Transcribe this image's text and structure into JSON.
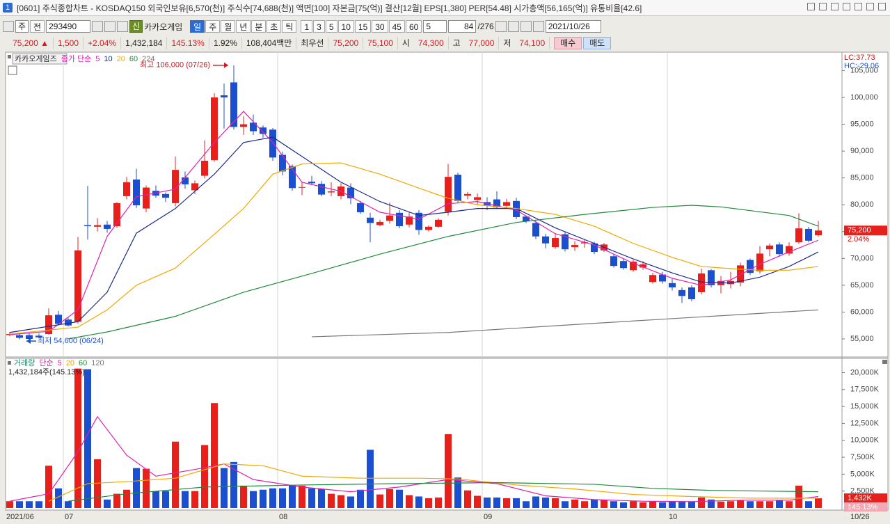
{
  "window": {
    "number": "1",
    "title": "[0601] 주식종합차트 - KOSDAQ150 외국인보유[6,570(천)] 주식수[74,688(천)] 액면[100] 자본금[75(억)] 결산[12월] EPS[1,380] PER[54.48] 시가총액[56,165(억)] 유통비율[42.6]"
  },
  "toolbar": {
    "period_type": "주",
    "scope": "전",
    "code": "293490",
    "new_badge": "신",
    "name": "카카오게임",
    "periods": [
      "일",
      "주",
      "월",
      "년",
      "분",
      "초",
      "틱"
    ],
    "minutes": [
      "1",
      "3",
      "5",
      "10",
      "15",
      "30",
      "45",
      "60"
    ],
    "interval": "5",
    "count": "84",
    "total": "/276",
    "date": "2021/10/26"
  },
  "quote": {
    "price": "75,200",
    "sign": "▲",
    "change": "1,500",
    "change_rate": "+2.04%",
    "volume": "1,432,184",
    "volume_ratio": "145.13%",
    "turnover": "1.92%",
    "amount": "108,404백만",
    "best_label": "최우선",
    "ask": "75,200",
    "bid": "75,100",
    "open_label": "시",
    "open": "74,300",
    "high_label": "고",
    "high": "77,000",
    "low_label": "저",
    "low": "74,100",
    "buy": "매수",
    "sell": "매도"
  },
  "chart_data": [
    {
      "type": "candlestick",
      "title": "카카오게임즈",
      "legend_prefix": "종가 단순",
      "up_color": "#e8201c",
      "down_color": "#1c4fd0",
      "open": [
        55700,
        55700,
        55700,
        55600,
        55900,
        59500,
        58600,
        58200,
        76200,
        75900,
        76300,
        76000,
        81600,
        84700,
        79300,
        82600,
        82000,
        80300,
        85100,
        82700,
        85400,
        88300,
        100400,
        102800,
        94500,
        95300,
        94400,
        94000,
        89300,
        87200,
        83200,
        84300,
        83900,
        82300,
        81600,
        83200,
        80300,
        77600,
        76200,
        77000,
        78500,
        76300,
        78500,
        75300,
        75900,
        78700,
        85600,
        81700,
        80900,
        80500,
        81000,
        79800,
        80700,
        77800,
        76600,
        74100,
        72100,
        74500,
        72100,
        72800,
        72800,
        71500,
        70400,
        69500,
        67800,
        68300,
        65600,
        67000,
        65400,
        64100,
        64600,
        63700,
        67800,
        65000,
        65200,
        65500,
        69700,
        67600,
        71700,
        72600,
        70900,
        73000,
        75500,
        74300
      ],
      "high": [
        56300,
        56000,
        56100,
        56000,
        60700,
        60200,
        59000,
        74000,
        83500,
        77500,
        77000,
        80500,
        85200,
        86700,
        83600,
        83600,
        82300,
        89000,
        86200,
        84500,
        92000,
        100800,
        102600,
        106000,
        96500,
        96800,
        94800,
        94300,
        89900,
        87500,
        84200,
        85400,
        84400,
        84200,
        84000,
        84000,
        80700,
        78500,
        77200,
        80400,
        79000,
        78600,
        79000,
        76200,
        77500,
        87600,
        86000,
        82400,
        82100,
        81400,
        82500,
        81100,
        81300,
        78000,
        77000,
        74600,
        74700,
        74900,
        73200,
        73500,
        73100,
        72900,
        70800,
        69900,
        69700,
        69500,
        67300,
        67500,
        66200,
        64600,
        65000,
        68100,
        68000,
        66700,
        67500,
        69200,
        70000,
        72300,
        72800,
        73000,
        73000,
        78400,
        75900,
        77000
      ],
      "low": [
        55500,
        54900,
        54600,
        55100,
        55800,
        57500,
        57300,
        57800,
        73500,
        75000,
        74800,
        75700,
        81000,
        79400,
        78600,
        81300,
        80500,
        79700,
        83000,
        82000,
        84900,
        88000,
        94200,
        94000,
        93000,
        93000,
        92500,
        88200,
        85500,
        82600,
        81800,
        83600,
        81600,
        81600,
        81000,
        80100,
        78300,
        73000,
        76000,
        76500,
        75600,
        75800,
        74400,
        75000,
        75700,
        78000,
        80300,
        81000,
        80000,
        79000,
        79200,
        79500,
        77300,
        76600,
        73600,
        71900,
        71800,
        71300,
        71400,
        72000,
        70800,
        71200,
        68300,
        67900,
        67500,
        67900,
        65300,
        65300,
        64000,
        61700,
        62000,
        63300,
        64600,
        63500,
        64400,
        64800,
        66900,
        67200,
        70400,
        70300,
        70500,
        72700,
        73000,
        74100
      ],
      "close": [
        55900,
        55200,
        55000,
        55300,
        59400,
        57800,
        57500,
        71500,
        76000,
        76200,
        75500,
        80300,
        84200,
        79900,
        83200,
        81700,
        81300,
        86500,
        83800,
        84000,
        88200,
        100000,
        100000,
        94500,
        95000,
        93700,
        93200,
        88800,
        86200,
        83100,
        83300,
        84000,
        81900,
        82500,
        83400,
        81200,
        78600,
        76600,
        76800,
        78000,
        76000,
        77800,
        75300,
        75900,
        77200,
        85200,
        80700,
        82000,
        81400,
        79800,
        79500,
        80500,
        77700,
        76900,
        74100,
        72800,
        73800,
        71700,
        72500,
        73000,
        71200,
        72600,
        68600,
        68200,
        69400,
        68900,
        66900,
        65700,
        64600,
        63000,
        62400,
        67200,
        65000,
        65800,
        65800,
        68700,
        67300,
        70900,
        72400,
        70800,
        72300,
        75600,
        73300,
        75200
      ],
      "series": [
        {
          "name": "5",
          "color": "#e020b0",
          "x": [
            0,
            4,
            7,
            10,
            13,
            17,
            21,
            24,
            27,
            30,
            34,
            38,
            42,
            45,
            48,
            52,
            56,
            60,
            64,
            68,
            71,
            74,
            77,
            80,
            83
          ],
          "values": [
            55800,
            56400,
            60400,
            74100,
            81500,
            82900,
            91600,
            97400,
            91600,
            84200,
            82500,
            78600,
            77300,
            80200,
            80600,
            79000,
            74600,
            72500,
            69100,
            66300,
            65000,
            66000,
            68900,
            71200,
            73400
          ]
        },
        {
          "name": "10",
          "color": "#1c2a8a",
          "x": [
            0,
            7,
            10,
            13,
            17,
            21,
            24,
            27,
            30,
            34,
            38,
            42,
            45,
            48,
            52,
            56,
            60,
            64,
            68,
            71,
            74,
            77,
            80,
            83
          ],
          "values": [
            56200,
            58200,
            63700,
            74700,
            79300,
            85700,
            91600,
            92600,
            89000,
            84200,
            80600,
            78000,
            78600,
            79300,
            79300,
            75700,
            72800,
            69900,
            67300,
            65600,
            65400,
            66500,
            68500,
            71200
          ]
        },
        {
          "name": "20",
          "color": "#f0a800",
          "x": [
            0,
            7,
            10,
            13,
            17,
            21,
            24,
            27,
            30,
            34,
            38,
            42,
            45,
            48,
            52,
            56,
            60,
            64,
            68,
            71,
            74,
            77,
            80,
            83
          ],
          "values": [
            55900,
            57200,
            60400,
            65000,
            68200,
            74500,
            79300,
            85700,
            87600,
            87800,
            85700,
            83100,
            81200,
            80000,
            79300,
            78200,
            76000,
            72800,
            70200,
            68500,
            68100,
            67800,
            67800,
            68500
          ]
        },
        {
          "name": "60",
          "color": "#1f8a3a",
          "x": [
            6,
            10,
            17,
            24,
            31,
            38,
            45,
            52,
            59,
            66,
            70,
            73,
            80,
            83
          ],
          "values": [
            55000,
            56300,
            59200,
            63700,
            67200,
            70800,
            74100,
            76700,
            78200,
            79500,
            79900,
            79600,
            78000,
            76000
          ]
        },
        {
          "name": "224",
          "color": "#777777",
          "x": [
            31,
            45,
            60,
            70,
            83
          ],
          "values": [
            55400,
            56200,
            57900,
            59000,
            60400
          ]
        }
      ],
      "ylim": [
        51760,
        108300
      ],
      "yticks": [
        {
          "value": 55000,
          "label": "55,000"
        },
        {
          "value": 60000,
          "label": "60,000"
        },
        {
          "value": 65000,
          "label": "65,000"
        },
        {
          "value": 70000,
          "label": "70,000"
        },
        {
          "value": 75000,
          "label": "75,000"
        },
        {
          "value": 80000,
          "label": "80,000"
        },
        {
          "value": 85000,
          "label": "85,000"
        },
        {
          "value": 90000,
          "label": "90,000"
        },
        {
          "value": 95000,
          "label": "95,000"
        },
        {
          "value": 100000,
          "label": "100,000"
        },
        {
          "value": 105000,
          "label": "105,000"
        }
      ],
      "annotations": [
        {
          "text": "최고 106,000 (07/26)",
          "index": 23,
          "value": 106000,
          "color": "#d8181c"
        },
        {
          "text": "최저 54,600 (06/24)",
          "index": 2,
          "value": 54600,
          "color": "#1c4fd0"
        }
      ],
      "last_label": "75,200",
      "last_change": "2.04%",
      "lc_label": "LC:37.73",
      "hc_label": "HC:-29.06"
    },
    {
      "type": "bar",
      "title": "거래량",
      "legend_prefix": "단순",
      "values": [
        1000,
        1000,
        1000,
        1000,
        6250,
        2900,
        1000,
        20600,
        20500,
        7200,
        1250,
        2100,
        2700,
        5900,
        5800,
        2500,
        2500,
        9800,
        2500,
        2500,
        9300,
        15500,
        5900,
        6800,
        3300,
        2500,
        2700,
        2900,
        2900,
        3400,
        3300,
        2900,
        2800,
        2100,
        1900,
        1700,
        2700,
        8600,
        2000,
        2800,
        2700,
        1900,
        1700,
        1450,
        1550,
        10900,
        4500,
        2600,
        1800,
        1550,
        1550,
        1450,
        1450,
        1000,
        1700,
        1550,
        1450,
        1000,
        1250,
        1000,
        1250,
        1150,
        1000,
        830,
        1000,
        830,
        940,
        830,
        1000,
        1000,
        1000,
        1550,
        1250,
        940,
        1000,
        1150,
        1000,
        1000,
        1000,
        1150,
        1000,
        3300,
        1000,
        1432
      ],
      "series": [
        {
          "name": "5",
          "color": "#e020b0",
          "x": [
            0,
            4,
            7,
            9,
            12,
            15,
            19,
            22,
            25,
            30,
            35,
            40,
            45,
            50,
            55,
            60,
            65,
            70,
            75,
            80,
            83
          ],
          "values": [
            1000,
            2100,
            8300,
            13500,
            7800,
            4700,
            5700,
            6500,
            4200,
            3100,
            2400,
            3100,
            4200,
            3600,
            1800,
            1250,
            1000,
            940,
            1150,
            1150,
            1700
          ]
        },
        {
          "name": "20",
          "color": "#f0a800",
          "x": [
            4,
            8,
            12,
            17,
            22,
            26,
            30,
            36,
            42,
            46,
            52,
            58,
            64,
            70,
            76,
            83
          ],
          "values": [
            1000,
            3600,
            3900,
            4400,
            6500,
            6250,
            4700,
            4400,
            4400,
            4300,
            3400,
            2800,
            2000,
            1700,
            1450,
            1450
          ]
        },
        {
          "name": "60",
          "color": "#1f8a3a",
          "x": [
            6,
            12,
            20,
            30,
            40,
            50,
            60,
            66,
            72,
            83
          ],
          "values": [
            1000,
            2100,
            3100,
            3400,
            3600,
            3750,
            3500,
            2900,
            2600,
            2400
          ]
        },
        {
          "name": "120",
          "color": "#777777",
          "x": [],
          "values": []
        }
      ],
      "ylim": [
        0,
        22000
      ],
      "yticks": [
        {
          "value": 2500,
          "label": "2,500K"
        },
        {
          "value": 5000,
          "label": "5,000K"
        },
        {
          "value": 7500,
          "label": "7,500K"
        },
        {
          "value": 10000,
          "label": "10,000K"
        },
        {
          "value": 12500,
          "label": "12,500K"
        },
        {
          "value": 15000,
          "label": "15,000K"
        },
        {
          "value": 17500,
          "label": "17,500K"
        },
        {
          "value": 20000,
          "label": "20,000K"
        }
      ],
      "summary": "1,432,184주(145.13%)",
      "last_label": "1,432K",
      "last_ratio": "145.13%",
      "x_labels": [
        {
          "value": 0,
          "label": "2021/06"
        },
        {
          "value": 6,
          "label": "07"
        },
        {
          "value": 28,
          "label": "08"
        },
        {
          "value": 49,
          "label": "09"
        },
        {
          "value": 68,
          "label": "10"
        }
      ],
      "end_label": "10/26"
    }
  ]
}
